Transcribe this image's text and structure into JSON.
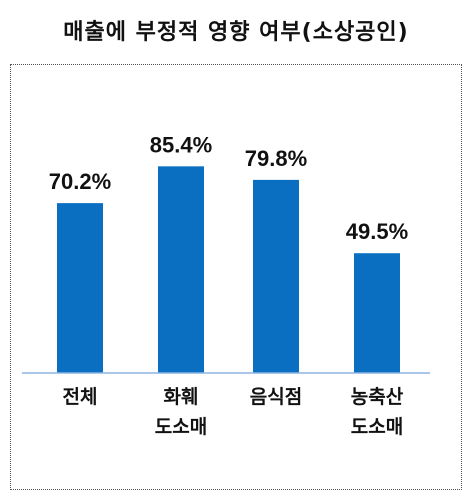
{
  "chart_data": {
    "type": "bar",
    "title": "매출에 부정적 영향 여부(소상공인)",
    "categories": [
      "전체",
      "화훼\n도소매",
      "음식점",
      "농축산\n도소매"
    ],
    "values": [
      70.2,
      85.4,
      79.8,
      49.5
    ],
    "value_labels": [
      "70.2%",
      "85.4%",
      "79.8%",
      "49.5%"
    ],
    "bar_color": "#0B6FC1",
    "axis_color": "#8DB4E2",
    "ylim": [
      0,
      100
    ],
    "grid": false,
    "legend": "none"
  }
}
